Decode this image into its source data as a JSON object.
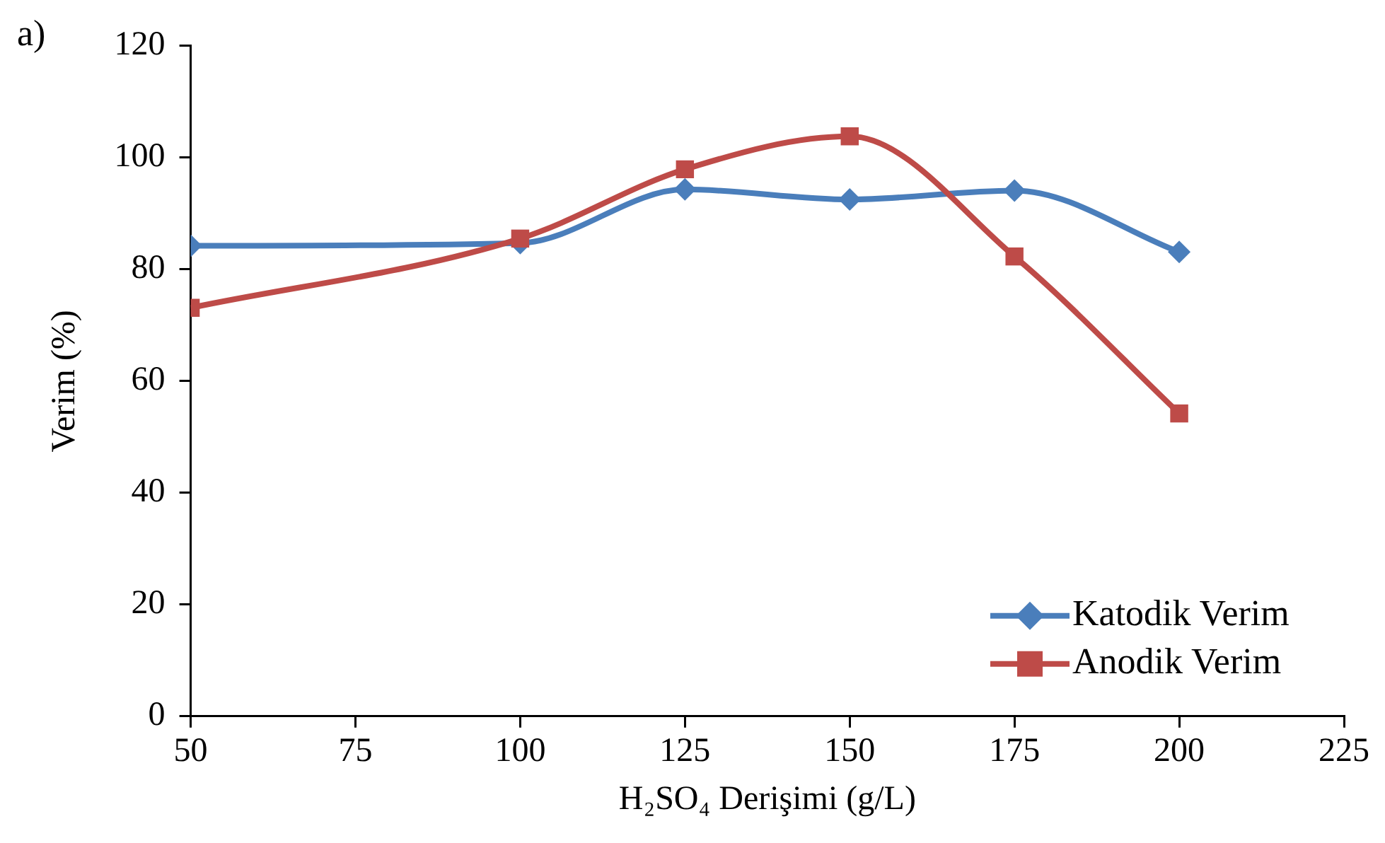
{
  "chart_data": {
    "type": "line",
    "annotations": [
      "a)"
    ],
    "xlabel": "H₂SO₄ Derişimi (g/L)",
    "ylabel": "Verim (%)",
    "x": [
      50,
      100,
      125,
      150,
      175,
      200
    ],
    "series": [
      {
        "name": "Katodik Verim",
        "color": "#4a7ebb",
        "marker": "diamond",
        "values": [
          84.2,
          84.7,
          94.3,
          92.5,
          94.1,
          83.1
        ]
      },
      {
        "name": "Anodik Verim",
        "color": "#be4b48",
        "marker": "square",
        "values": [
          73.1,
          85.5,
          97.9,
          103.8,
          82.3,
          54.2
        ]
      }
    ],
    "xlim": [
      50,
      225
    ],
    "xticks": [
      50,
      75,
      100,
      125,
      150,
      175,
      200,
      225
    ],
    "ylim": [
      0,
      120
    ],
    "yticks": [
      0,
      20,
      40,
      60,
      80,
      100,
      120
    ],
    "grid": false,
    "legend": "bottom right",
    "line_style": "solid"
  }
}
